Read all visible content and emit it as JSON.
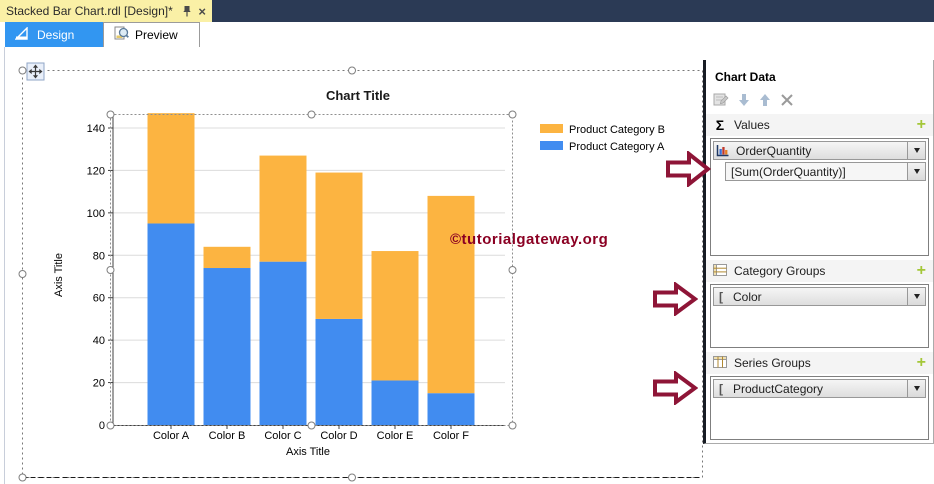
{
  "window": {
    "document_tab": {
      "label": "Stacked Bar Chart.rdl [Design]*",
      "close_glyph": "×"
    },
    "view_tabs": {
      "design": "Design",
      "preview": "Preview"
    }
  },
  "chart_data": {
    "type": "bar",
    "stacked": true,
    "title": "Chart Title",
    "xlabel": "Axis Title",
    "ylabel": "Axis Title",
    "categories": [
      "Color A",
      "Color B",
      "Color C",
      "Color D",
      "Color E",
      "Color F"
    ],
    "series": [
      {
        "name": "Product Category A",
        "color": "#418CF0",
        "values": [
          95,
          74,
          77,
          50,
          21,
          15
        ]
      },
      {
        "name": "Product Category B",
        "color": "#FCB441",
        "values": [
          52,
          10,
          50,
          69,
          61,
          93
        ]
      }
    ],
    "stacked_totals": [
      147,
      84,
      127,
      119,
      82,
      108
    ],
    "yticks": [
      0,
      20,
      40,
      60,
      80,
      100,
      120,
      140
    ],
    "ylim": [
      0,
      148
    ],
    "grid": true,
    "legend_position": "top-right"
  },
  "watermark": {
    "text": "©tutorialgateway.org",
    "color": "#8B0023"
  },
  "chart_panel": {
    "title": "Chart Data",
    "sections": {
      "values": {
        "icon": "Σ",
        "label": "Values",
        "add": "+",
        "field": "OrderQuantity",
        "expression": "[Sum(OrderQuantity)]"
      },
      "category_groups": {
        "label": "Category Groups",
        "add": "+",
        "field": "Color",
        "bracket": "["
      },
      "series_groups": {
        "label": "Series Groups",
        "add": "+",
        "field": "ProductCategory",
        "bracket": "["
      }
    }
  },
  "colors": {
    "series_a": "#418CF0",
    "series_b": "#FCB441",
    "annotation_arrow": "#8E1537",
    "active_view_tab": "#3296F1",
    "document_tab_bg": "#FAF0A6",
    "tabstrip_bg": "#2B3A55",
    "add_button_green": "#A4C739",
    "watermark": "#8B0023"
  }
}
